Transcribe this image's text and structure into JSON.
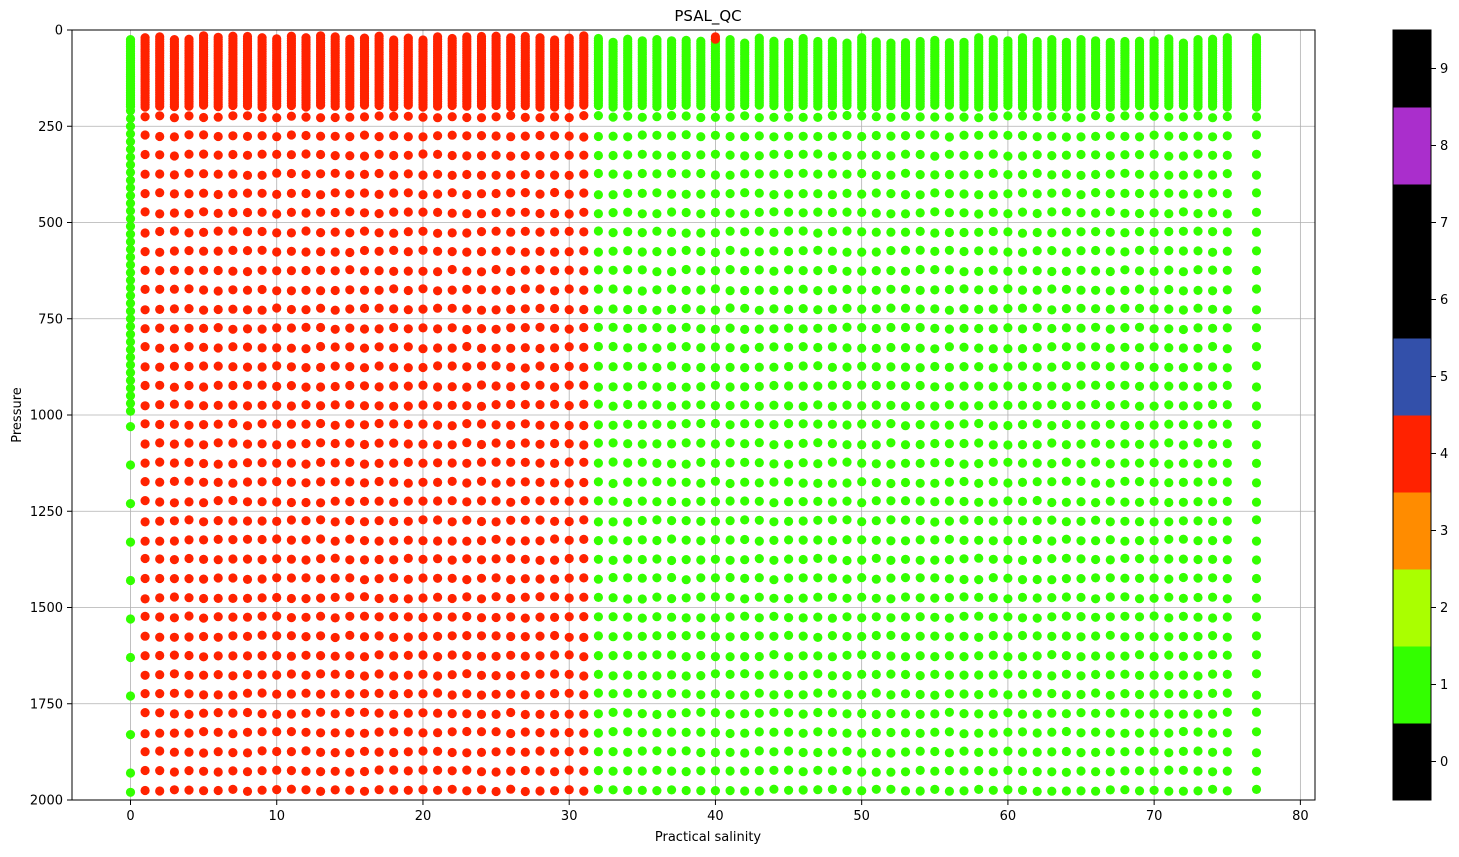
{
  "chart_data": {
    "type": "scatter",
    "title": "PSAL_QC",
    "xlabel": "Practical salinity",
    "ylabel": "Pressure",
    "xlim": [
      -4,
      81
    ],
    "ylim": [
      2000,
      0
    ],
    "y_inverted": true,
    "grid": true,
    "x_ticks": [
      0,
      10,
      20,
      30,
      40,
      50,
      60,
      70,
      80
    ],
    "y_ticks": [
      0,
      250,
      500,
      750,
      1000,
      1250,
      1500,
      1750,
      2000
    ],
    "point_groups": [
      {
        "qc_flag": 1,
        "color": "#33ff00",
        "x": [
          0
        ],
        "y_dense": [
          25,
          200
        ],
        "y_levels": "20-dbar spacing 210-990, then 1030-1430 and 1530-1930 at 100-dbar spacing, plus 1980"
      },
      {
        "qc_flag": 4,
        "color": "#ff2200",
        "x_range": [
          0,
          31
        ],
        "y_dense": [
          20,
          200
        ],
        "y_levels": "every 50 dbar from 225 to 1975"
      },
      {
        "qc_flag": 1,
        "color": "#33ff00",
        "x_range": [
          32,
          75
        ],
        "y_dense": [
          25,
          200
        ],
        "y_levels": "every 50 dbar from 225 to 1975"
      },
      {
        "qc_flag": 1,
        "color": "#33ff00",
        "x": [
          77
        ],
        "y_dense": [
          25,
          200
        ],
        "y_levels": "every 50 dbar from 225 to 1975"
      },
      {
        "qc_flag": 4,
        "color": "#ff2200",
        "x": [
          40
        ],
        "y": [
          20
        ]
      }
    ],
    "colorbar": {
      "ticks": [
        0,
        1,
        2,
        3,
        4,
        5,
        6,
        7,
        8,
        9
      ],
      "range": [
        -0.5,
        9.5
      ],
      "colors": [
        "#000000",
        "#33ff00",
        "#aaff00",
        "#ff8c00",
        "#ff2200",
        "#3350aa",
        "#000000",
        "#000000",
        "#aa2ecc",
        "#000000"
      ]
    }
  }
}
